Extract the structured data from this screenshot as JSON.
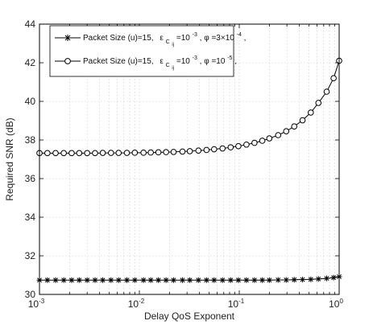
{
  "chart_data": {
    "type": "line",
    "xlabel": "Delay QoS Exponent",
    "ylabel": "Required SNR (dB)",
    "xscale": "log",
    "xlim": [
      0.001,
      1
    ],
    "ylim": [
      30,
      44
    ],
    "grid": true,
    "legend_position": "top-left",
    "x_ticks": [
      {
        "base": "10",
        "exp": "-3"
      },
      {
        "base": "10",
        "exp": "-2"
      },
      {
        "base": "10",
        "exp": "-1"
      },
      {
        "base": "10",
        "exp": "0"
      }
    ],
    "y_ticks": [
      "30",
      "32",
      "34",
      "36",
      "38",
      "40",
      "42",
      "44"
    ],
    "legend": [
      {
        "prefix": "Packet Size (u)=15,",
        "eps_sym": "ε",
        "eps_sub": "C",
        "eps_subsub": "ij",
        "eps_value": "=10",
        "eps_exp": "-3",
        "phi_sym": "φ",
        "phi_value": "=3×10",
        "phi_exp": "-4",
        "suffix": ","
      },
      {
        "prefix": "Packet Size (u)=15,",
        "eps_sym": "ε",
        "eps_sub": "C",
        "eps_subsub": "ij",
        "eps_value": "=10",
        "eps_exp": "-3",
        "phi_sym": "φ",
        "phi_value": "=10",
        "phi_exp": "-5",
        "suffix": ","
      }
    ],
    "x": [
      0.001,
      0.0012,
      0.00145,
      0.00175,
      0.0021,
      0.0025,
      0.003,
      0.0036,
      0.0043,
      0.0052,
      0.0062,
      0.0075,
      0.009,
      0.011,
      0.013,
      0.0155,
      0.0185,
      0.022,
      0.027,
      0.032,
      0.039,
      0.047,
      0.056,
      0.068,
      0.082,
      0.098,
      0.118,
      0.142,
      0.17,
      0.2,
      0.245,
      0.295,
      0.355,
      0.43,
      0.52,
      0.62,
      0.75,
      0.88,
      1.0
    ],
    "series": [
      {
        "name": "Packet Size (u)=15, ε_Cij=10^-3, φ=3×10^-4,",
        "marker": "asterisk",
        "color": "#000000",
        "values": [
          30.74,
          30.74,
          30.74,
          30.74,
          30.74,
          30.74,
          30.74,
          30.74,
          30.74,
          30.74,
          30.74,
          30.74,
          30.74,
          30.74,
          30.74,
          30.74,
          30.74,
          30.74,
          30.74,
          30.74,
          30.74,
          30.74,
          30.74,
          30.74,
          30.74,
          30.74,
          30.74,
          30.74,
          30.74,
          30.74,
          30.75,
          30.75,
          30.76,
          30.77,
          30.78,
          30.8,
          30.83,
          30.87,
          30.92
        ]
      },
      {
        "name": "Packet Size (u)=15, ε_Cij=10^-3, φ=10^-5,",
        "marker": "circle",
        "color": "#000000",
        "values": [
          37.32,
          37.32,
          37.32,
          37.32,
          37.32,
          37.32,
          37.32,
          37.32,
          37.33,
          37.33,
          37.33,
          37.33,
          37.34,
          37.34,
          37.35,
          37.36,
          37.37,
          37.38,
          37.4,
          37.42,
          37.45,
          37.48,
          37.52,
          37.56,
          37.62,
          37.68,
          37.76,
          37.85,
          37.96,
          38.08,
          38.25,
          38.45,
          38.7,
          39.02,
          39.42,
          39.92,
          40.5,
          41.2,
          42.1
        ]
      }
    ]
  }
}
